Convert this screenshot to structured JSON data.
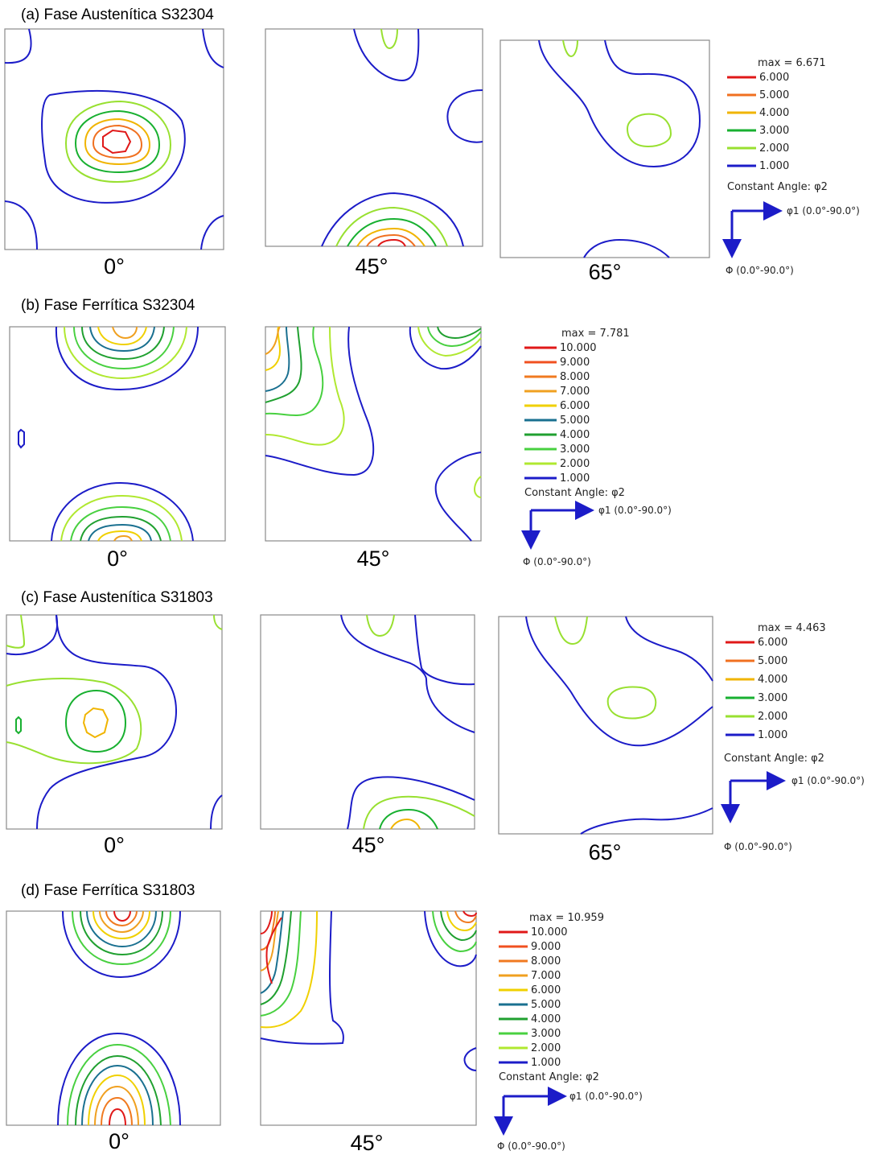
{
  "sections": [
    {
      "label": "(a)   Fase Austenítica S32304",
      "angles": [
        "0°",
        "45°",
        "65°"
      ],
      "legend": {
        "max": "max = 6.671",
        "levels": [
          {
            "value": "6.000",
            "color": "#e01818"
          },
          {
            "value": "5.000",
            "color": "#f07020"
          },
          {
            "value": "4.000",
            "color": "#f0b400"
          },
          {
            "value": "3.000",
            "color": "#18b030"
          },
          {
            "value": "2.000",
            "color": "#98e030"
          },
          {
            "value": "1.000",
            "color": "#1c1cc8"
          }
        ],
        "constant_angle": "Constant Angle: φ2",
        "axis_phi1": "φ1 (0.0°-90.0°)",
        "axis_Phi": "Φ (0.0°-90.0°)"
      }
    },
    {
      "label": "(b)   Fase Ferrítica S32304",
      "angles": [
        "0°",
        "45°"
      ],
      "legend": {
        "max": "max = 7.781",
        "levels": [
          {
            "value": "10.000",
            "color": "#e01818"
          },
          {
            "value": "9.000",
            "color": "#f05020"
          },
          {
            "value": "8.000",
            "color": "#f07a20"
          },
          {
            "value": "7.000",
            "color": "#f0a020"
          },
          {
            "value": "6.000",
            "color": "#f0d000"
          },
          {
            "value": "5.000",
            "color": "#1a7090"
          },
          {
            "value": "4.000",
            "color": "#20a030"
          },
          {
            "value": "3.000",
            "color": "#48d040"
          },
          {
            "value": "2.000",
            "color": "#b0e830"
          },
          {
            "value": "1.000",
            "color": "#1c1cc8"
          }
        ],
        "constant_angle": "Constant Angle: φ2",
        "axis_phi1": "φ1 (0.0°-90.0°)",
        "axis_Phi": "Φ (0.0°-90.0°)"
      }
    },
    {
      "label": "(c)   Fase Austenítica S31803",
      "angles": [
        "0°",
        "45°",
        "65°"
      ],
      "legend": {
        "max": "max = 4.463",
        "levels": [
          {
            "value": "6.000",
            "color": "#e01818"
          },
          {
            "value": "5.000",
            "color": "#f07020"
          },
          {
            "value": "4.000",
            "color": "#f0b400"
          },
          {
            "value": "3.000",
            "color": "#18b030"
          },
          {
            "value": "2.000",
            "color": "#98e030"
          },
          {
            "value": "1.000",
            "color": "#1c1cc8"
          }
        ],
        "constant_angle": "Constant Angle: φ2",
        "axis_phi1": "φ1 (0.0°-90.0°)",
        "axis_Phi": "Φ (0.0°-90.0°)"
      }
    },
    {
      "label": "(d)   Fase Ferrítica S31803",
      "angles": [
        "0°",
        "45°"
      ],
      "legend": {
        "max": "max = 10.959",
        "levels": [
          {
            "value": "10.000",
            "color": "#e01818"
          },
          {
            "value": "9.000",
            "color": "#f05020"
          },
          {
            "value": "8.000",
            "color": "#f07a20"
          },
          {
            "value": "7.000",
            "color": "#f0a020"
          },
          {
            "value": "6.000",
            "color": "#f0d000"
          },
          {
            "value": "5.000",
            "color": "#1a7090"
          },
          {
            "value": "4.000",
            "color": "#20a030"
          },
          {
            "value": "3.000",
            "color": "#48d040"
          },
          {
            "value": "2.000",
            "color": "#b0e830"
          },
          {
            "value": "1.000",
            "color": "#1c1cc8"
          }
        ],
        "constant_angle": "Constant Angle: φ2",
        "axis_phi1": "φ1 (0.0°-90.0°)",
        "axis_Phi": "Φ (0.0°-90.0°)"
      }
    }
  ]
}
